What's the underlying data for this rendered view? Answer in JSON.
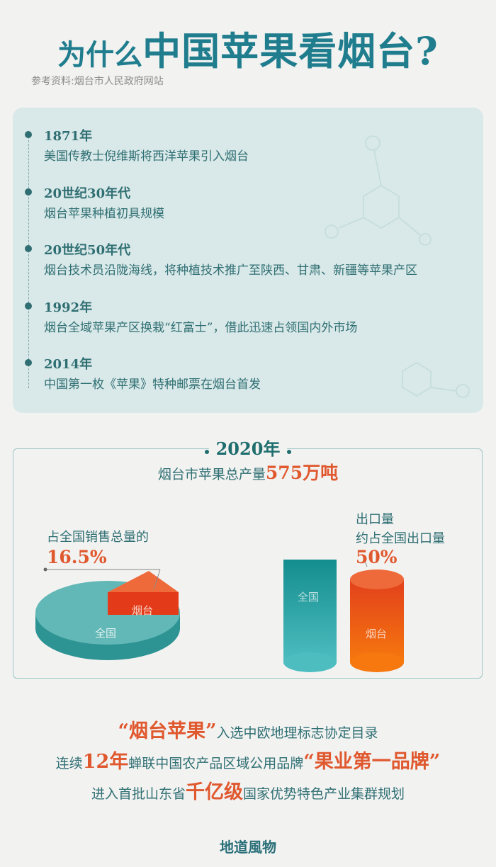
{
  "header": {
    "title_prefix": "为什么",
    "title_main": "中国苹果看烟台?",
    "source": "参考资料:烟台市人民政府网站"
  },
  "timeline": [
    {
      "year": "1871年",
      "desc": "美国传教士倪维斯将西洋苹果引入烟台"
    },
    {
      "year": "20世纪30年代",
      "desc": "烟台苹果种植初具规模"
    },
    {
      "year": "20世纪50年代",
      "desc": "烟台技术员沿陇海线，将种植技术推广至陕西、甘肃、新疆等苹果产区"
    },
    {
      "year": "1992年",
      "desc": "烟台全域苹果产区换栽“红富士”，借此迅速占领国内外市场"
    },
    {
      "year": "2014年",
      "desc": "中国第一枚《苹果》特种邮票在烟台首发"
    }
  ],
  "stats": {
    "year": "2020年",
    "subtitle_prefix": "烟台市苹果总产量",
    "subtitle_value": "575万吨",
    "sales": {
      "label": "占全国销售总量的",
      "value": "16.5%",
      "share": 0.165,
      "part_label": "烟台",
      "whole_label": "全国"
    },
    "export": {
      "label1": "出口量",
      "label2": "约占全国出口量",
      "value": "50%",
      "share": 0.5,
      "part_label": "烟台",
      "whole_label": "全国"
    }
  },
  "bottom": {
    "line1": {
      "hl": "“烟台苹果”",
      "rest": "入选中欧地理标志协定目录"
    },
    "line2": {
      "pre": "连续",
      "hl1": "12年",
      "mid": "蝉联中国农产品区域公用品牌",
      "hl2": "“果业第一品牌”"
    },
    "line3": {
      "pre": "进入首批山东省",
      "hl": "千亿级",
      "rest": "国家优势特色产业集群规划"
    }
  },
  "brand": "地道風物",
  "colors": {
    "teal": "#1f7d8d",
    "orange": "#e0582e",
    "panel": "#d9e8e8"
  }
}
